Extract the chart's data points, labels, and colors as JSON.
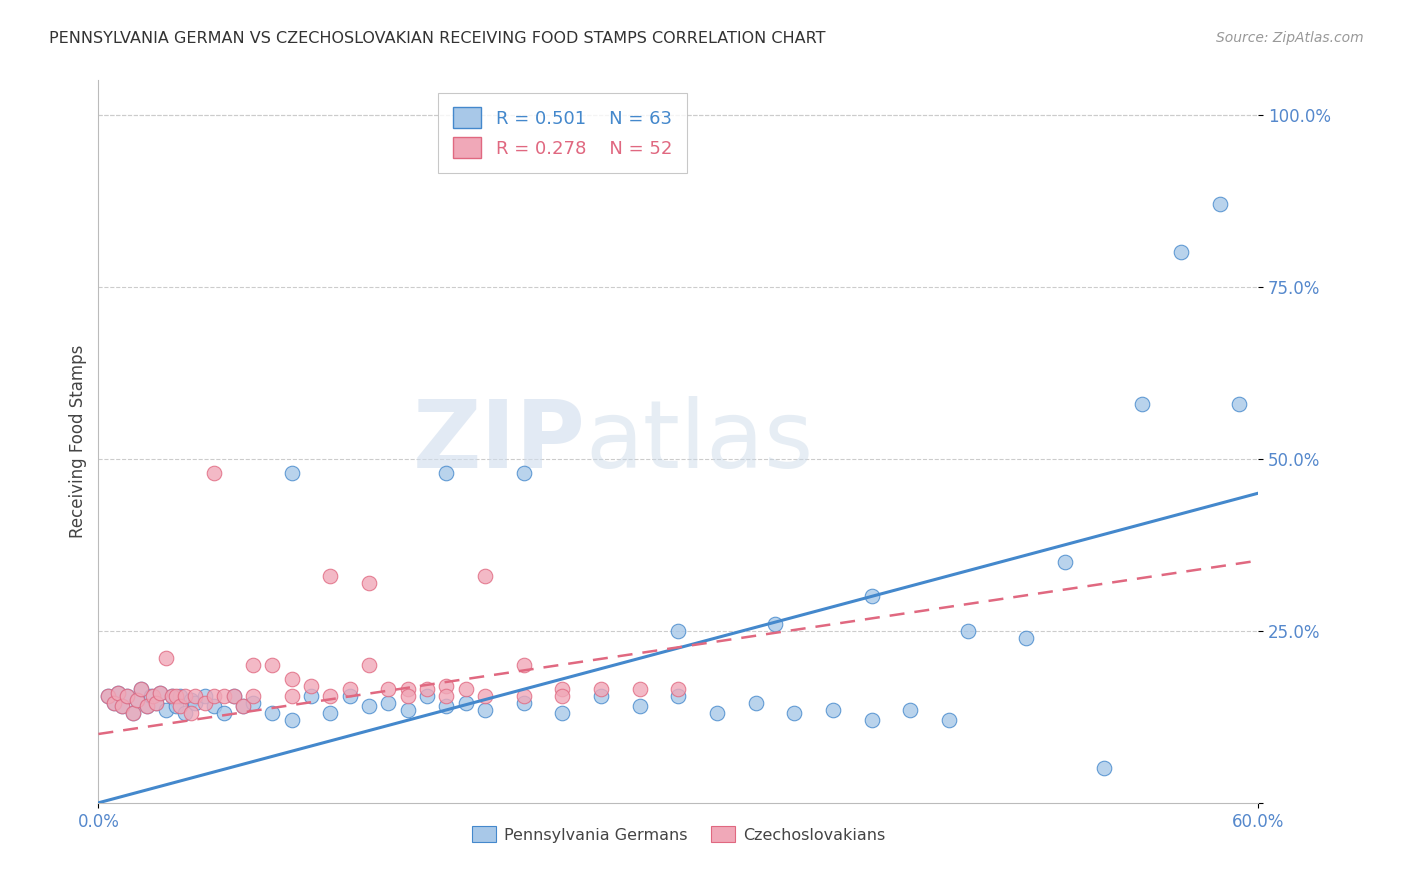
{
  "title": "PENNSYLVANIA GERMAN VS CZECHOSLOVAKIAN RECEIVING FOOD STAMPS CORRELATION CHART",
  "source": "Source: ZipAtlas.com",
  "xlabel_bottom": [
    "Pennsylvania Germans",
    "Czechoslovakians"
  ],
  "ylabel": "Receiving Food Stamps",
  "xmin": 0.0,
  "xmax": 0.6,
  "ymin": 0.0,
  "ymax": 1.05,
  "yticks": [
    0.0,
    0.25,
    0.5,
    0.75,
    1.0
  ],
  "ytick_labels": [
    "",
    "25.0%",
    "50.0%",
    "75.0%",
    "100.0%"
  ],
  "xtick_labels": [
    "0.0%",
    "60.0%"
  ],
  "legend_R1": "R = 0.501",
  "legend_N1": "N = 63",
  "legend_R2": "R = 0.278",
  "legend_N2": "N = 52",
  "color_blue": "#A8C8E8",
  "color_pink": "#F0A8B8",
  "line_blue": "#4488CC",
  "line_pink": "#E06880",
  "watermark_zip": "ZIP",
  "watermark_atlas": "atlas",
  "blue_x": [
    0.005,
    0.008,
    0.01,
    0.012,
    0.015,
    0.018,
    0.02,
    0.022,
    0.025,
    0.027,
    0.03,
    0.032,
    0.035,
    0.038,
    0.04,
    0.042,
    0.045,
    0.048,
    0.05,
    0.055,
    0.06,
    0.065,
    0.07,
    0.075,
    0.08,
    0.09,
    0.1,
    0.11,
    0.12,
    0.13,
    0.14,
    0.15,
    0.16,
    0.17,
    0.18,
    0.19,
    0.2,
    0.22,
    0.24,
    0.26,
    0.28,
    0.3,
    0.32,
    0.34,
    0.36,
    0.38,
    0.4,
    0.42,
    0.44,
    0.3,
    0.35,
    0.4,
    0.45,
    0.48,
    0.5,
    0.52,
    0.54,
    0.56,
    0.58,
    0.59,
    0.22,
    0.18,
    0.1
  ],
  "blue_y": [
    0.155,
    0.145,
    0.16,
    0.14,
    0.155,
    0.13,
    0.15,
    0.165,
    0.14,
    0.155,
    0.145,
    0.16,
    0.135,
    0.155,
    0.14,
    0.155,
    0.13,
    0.15,
    0.145,
    0.155,
    0.14,
    0.13,
    0.155,
    0.14,
    0.145,
    0.13,
    0.12,
    0.155,
    0.13,
    0.155,
    0.14,
    0.145,
    0.135,
    0.155,
    0.14,
    0.145,
    0.135,
    0.145,
    0.13,
    0.155,
    0.14,
    0.155,
    0.13,
    0.145,
    0.13,
    0.135,
    0.12,
    0.135,
    0.12,
    0.25,
    0.26,
    0.3,
    0.25,
    0.24,
    0.35,
    0.05,
    0.58,
    0.8,
    0.87,
    0.58,
    0.48,
    0.48,
    0.48
  ],
  "pink_x": [
    0.005,
    0.008,
    0.01,
    0.012,
    0.015,
    0.018,
    0.02,
    0.022,
    0.025,
    0.028,
    0.03,
    0.032,
    0.035,
    0.038,
    0.04,
    0.042,
    0.045,
    0.048,
    0.05,
    0.055,
    0.06,
    0.065,
    0.07,
    0.075,
    0.08,
    0.09,
    0.1,
    0.11,
    0.12,
    0.13,
    0.14,
    0.15,
    0.16,
    0.17,
    0.18,
    0.19,
    0.2,
    0.22,
    0.24,
    0.26,
    0.28,
    0.3,
    0.06,
    0.08,
    0.1,
    0.12,
    0.14,
    0.16,
    0.18,
    0.2,
    0.22,
    0.24
  ],
  "pink_y": [
    0.155,
    0.145,
    0.16,
    0.14,
    0.155,
    0.13,
    0.15,
    0.165,
    0.14,
    0.155,
    0.145,
    0.16,
    0.21,
    0.155,
    0.155,
    0.14,
    0.155,
    0.13,
    0.155,
    0.145,
    0.155,
    0.155,
    0.155,
    0.14,
    0.155,
    0.2,
    0.18,
    0.17,
    0.33,
    0.165,
    0.32,
    0.165,
    0.165,
    0.165,
    0.17,
    0.165,
    0.33,
    0.2,
    0.165,
    0.165,
    0.165,
    0.165,
    0.48,
    0.2,
    0.155,
    0.155,
    0.2,
    0.155,
    0.155,
    0.155,
    0.155,
    0.155
  ]
}
